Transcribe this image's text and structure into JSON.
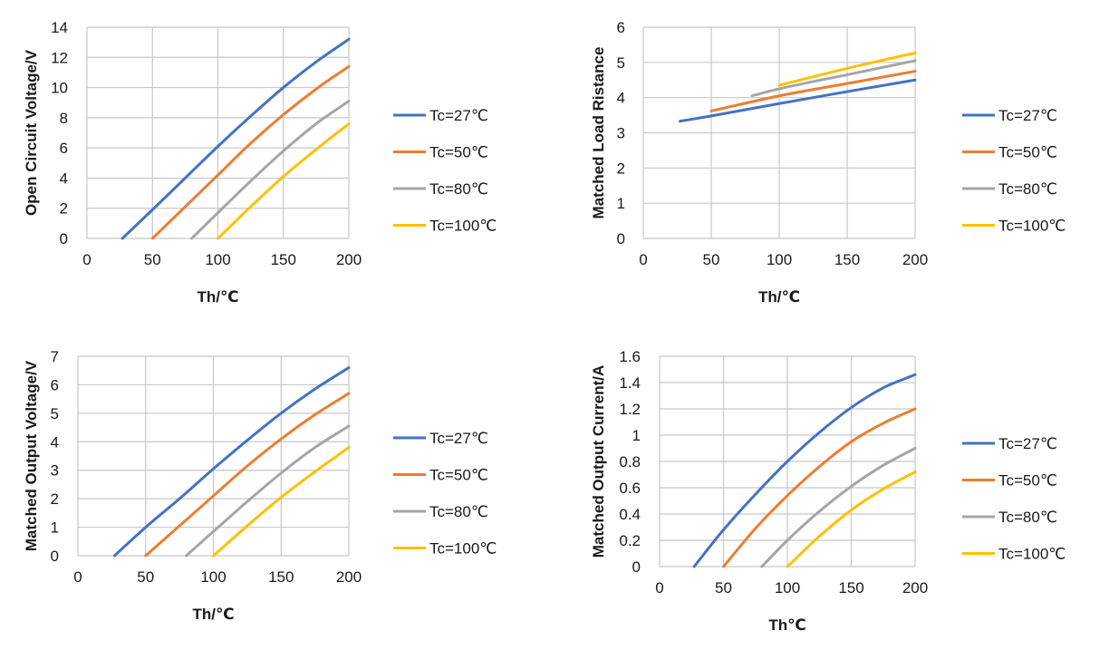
{
  "chart_data": [
    {
      "type": "line",
      "title": "",
      "xlabel": "Th/℃",
      "ylabel": "Open Circuit Voltage/V",
      "xlim": [
        0,
        200
      ],
      "ylim": [
        0,
        14
      ],
      "xticks": [
        0,
        50,
        100,
        150,
        200
      ],
      "yticks": [
        0,
        2,
        4,
        6,
        8,
        10,
        12,
        14
      ],
      "xtick_labels": [
        "0",
        "50",
        "100",
        "150",
        "200"
      ],
      "ytick_labels": [
        "0",
        "2",
        "4",
        "6",
        "8",
        "10",
        "12",
        "14"
      ],
      "grid": true,
      "legend_position": "right",
      "series": [
        {
          "name": "Tc=27℃",
          "color": "#4472C4",
          "x": [
            27,
            50,
            75,
            100,
            125,
            150,
            175,
            200
          ],
          "y": [
            0,
            1.9,
            4.0,
            6.1,
            8.1,
            10.0,
            11.7,
            13.2
          ]
        },
        {
          "name": "Tc=50℃",
          "color": "#ED7D31",
          "x": [
            50,
            75,
            100,
            125,
            150,
            175,
            200
          ],
          "y": [
            0,
            2.1,
            4.2,
            6.3,
            8.2,
            9.9,
            11.4
          ]
        },
        {
          "name": "Tc=80℃",
          "color": "#A5A5A5",
          "x": [
            80,
            100,
            125,
            150,
            175,
            200
          ],
          "y": [
            0,
            1.7,
            3.8,
            5.8,
            7.6,
            9.1
          ]
        },
        {
          "name": "Tc=100℃",
          "color": "#FFC000",
          "x": [
            100,
            125,
            150,
            175,
            200
          ],
          "y": [
            0,
            2.1,
            4.1,
            5.9,
            7.6
          ]
        }
      ]
    },
    {
      "type": "line",
      "title": "",
      "xlabel": "Th/℃",
      "ylabel": "Matched Load Ristance",
      "xlim": [
        0,
        200
      ],
      "ylim": [
        0,
        6
      ],
      "xticks": [
        0,
        50,
        100,
        150,
        200
      ],
      "yticks": [
        0,
        1,
        2,
        3,
        4,
        5,
        6
      ],
      "xtick_labels": [
        "0",
        "50",
        "100",
        "150",
        "200"
      ],
      "ytick_labels": [
        "0",
        "1",
        "2",
        "3",
        "4",
        "5",
        "6"
      ],
      "grid": true,
      "legend_position": "right",
      "series": [
        {
          "name": "Tc=27℃",
          "color": "#4472C4",
          "x": [
            27,
            50,
            100,
            150,
            200
          ],
          "y": [
            3.33,
            3.48,
            3.83,
            4.17,
            4.5
          ]
        },
        {
          "name": "Tc=50℃",
          "color": "#ED7D31",
          "x": [
            50,
            100,
            150,
            200
          ],
          "y": [
            3.62,
            4.05,
            4.4,
            4.75
          ]
        },
        {
          "name": "Tc=80℃",
          "color": "#A5A5A5",
          "x": [
            80,
            100,
            150,
            200
          ],
          "y": [
            4.05,
            4.25,
            4.65,
            5.05
          ]
        },
        {
          "name": "Tc=100℃",
          "color": "#FFC000",
          "x": [
            100,
            150,
            200
          ],
          "y": [
            4.35,
            4.83,
            5.27
          ]
        }
      ]
    },
    {
      "type": "line",
      "title": "",
      "xlabel": "Th/℃",
      "ylabel": "Matched Output Voltage/V",
      "xlim": [
        0,
        200
      ],
      "ylim": [
        0,
        7
      ],
      "xticks": [
        0,
        50,
        100,
        150,
        200
      ],
      "yticks": [
        0,
        1,
        2,
        3,
        4,
        5,
        6,
        7
      ],
      "xtick_labels": [
        "0",
        "50",
        "100",
        "150",
        "200"
      ],
      "ytick_labels": [
        "0",
        "1",
        "2",
        "3",
        "4",
        "5",
        "6",
        "7"
      ],
      "grid": true,
      "legend_position": "right",
      "series": [
        {
          "name": "Tc=27℃",
          "color": "#4472C4",
          "x": [
            27,
            50,
            75,
            100,
            125,
            150,
            175,
            200
          ],
          "y": [
            0,
            1.0,
            2.0,
            3.05,
            4.05,
            5.0,
            5.85,
            6.6
          ]
        },
        {
          "name": "Tc=50℃",
          "color": "#ED7D31",
          "x": [
            50,
            75,
            100,
            125,
            150,
            175,
            200
          ],
          "y": [
            0,
            1.05,
            2.1,
            3.15,
            4.1,
            4.95,
            5.7
          ]
        },
        {
          "name": "Tc=80℃",
          "color": "#A5A5A5",
          "x": [
            80,
            100,
            125,
            150,
            175,
            200
          ],
          "y": [
            0,
            0.85,
            1.9,
            2.9,
            3.8,
            4.55
          ]
        },
        {
          "name": "Tc=100℃",
          "color": "#FFC000",
          "x": [
            100,
            125,
            150,
            175,
            200
          ],
          "y": [
            0,
            1.05,
            2.05,
            2.95,
            3.8
          ]
        }
      ]
    },
    {
      "type": "line",
      "title": "",
      "xlabel": "Th℃",
      "ylabel": "Matched Output Current/A",
      "xlim": [
        0,
        200
      ],
      "ylim": [
        0,
        1.6
      ],
      "xticks": [
        0,
        50,
        100,
        150,
        200
      ],
      "yticks": [
        0,
        0.2,
        0.4,
        0.6,
        0.8,
        1,
        1.2,
        1.4,
        1.6
      ],
      "xtick_labels": [
        "0",
        "50",
        "100",
        "150",
        "200"
      ],
      "ytick_labels": [
        "0",
        "0.2",
        "0.4",
        "0.6",
        "0.8",
        "1",
        "1.2",
        "1.4",
        "1.6"
      ],
      "grid": true,
      "legend_position": "right",
      "series": [
        {
          "name": "Tc=27℃",
          "color": "#4472C4",
          "x": [
            27,
            50,
            75,
            100,
            125,
            150,
            175,
            200
          ],
          "y": [
            0,
            0.28,
            0.55,
            0.8,
            1.02,
            1.21,
            1.36,
            1.46
          ]
        },
        {
          "name": "Tc=50℃",
          "color": "#ED7D31",
          "x": [
            50,
            75,
            100,
            125,
            150,
            175,
            200
          ],
          "y": [
            0,
            0.29,
            0.54,
            0.76,
            0.95,
            1.09,
            1.2
          ]
        },
        {
          "name": "Tc=80℃",
          "color": "#A5A5A5",
          "x": [
            80,
            100,
            125,
            150,
            175,
            200
          ],
          "y": [
            0,
            0.2,
            0.42,
            0.61,
            0.77,
            0.9
          ]
        },
        {
          "name": "Tc=100℃",
          "color": "#FFC000",
          "x": [
            100,
            125,
            150,
            175,
            200
          ],
          "y": [
            0,
            0.23,
            0.43,
            0.59,
            0.72
          ]
        }
      ]
    }
  ]
}
